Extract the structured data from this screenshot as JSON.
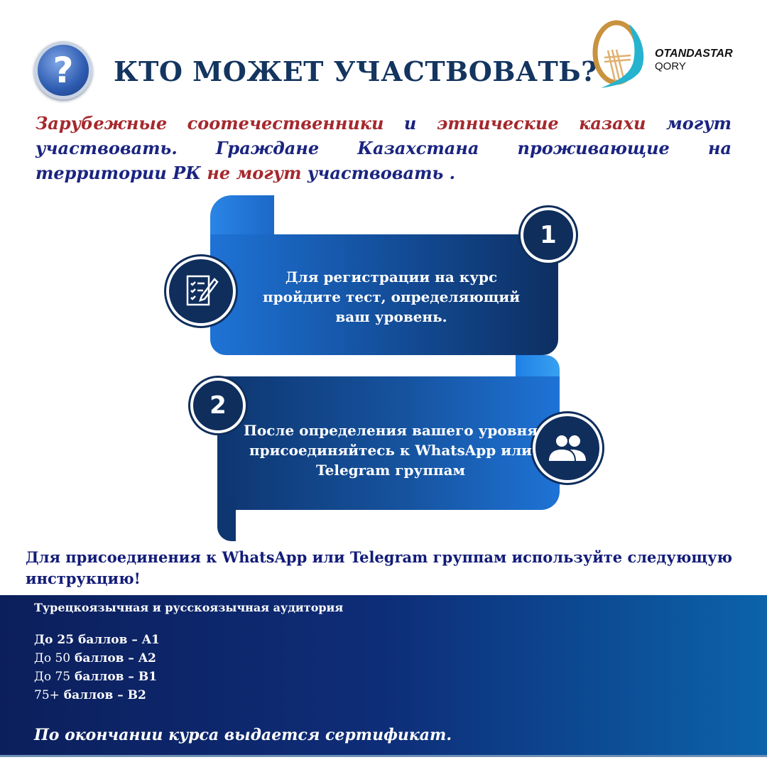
{
  "header": {
    "title": "КТО МОЖЕТ УЧАСТВОВАТЬ?",
    "icon": "question-mark-icon"
  },
  "logo": {
    "line1": "OTANDASTAR",
    "line2": "QORY"
  },
  "intro": {
    "p1": "Зарубежные",
    "p2": " ",
    "p3": "соотечественники",
    "p4": " и ",
    "p5": "этнические казахи",
    "p6": " могут участвовать. Граждане Казахстана проживающие на территории РК ",
    "p7": "не могут",
    "p8": " участвовать ."
  },
  "steps": [
    {
      "number": "1",
      "icon": "test-checklist-icon",
      "text": "Для регистрации на курс пройдите тест, определяющий ваш уровень."
    },
    {
      "number": "2",
      "icon": "group-people-icon",
      "text": "После определения вашего уровня присоединяйтесь к WhatsApp или Telegram группам"
    }
  ],
  "instruction": "Для присоединения к WhatsApp или Telegram группам используйте следующую инструкцию!",
  "levels": {
    "audience": "Турецкоязычная и русскоязычная аудитория",
    "items": [
      {
        "prefix": "До 25",
        "suffix": " баллов – A1"
      },
      {
        "prefix": "До 50",
        "suffix": " баллов – A2"
      },
      {
        "prefix": "До 75",
        "suffix": " баллов – B1"
      },
      {
        "prefix": "75+",
        "suffix": " баллов – B2"
      }
    ],
    "certificate": "По окончании курса выдается сертификат."
  },
  "colors": {
    "title": "#13355f",
    "accent_red": "#a5282d",
    "text_blue": "#1a2480",
    "band_dark": "#0c1f5c",
    "band_light": "#0b63aa"
  }
}
